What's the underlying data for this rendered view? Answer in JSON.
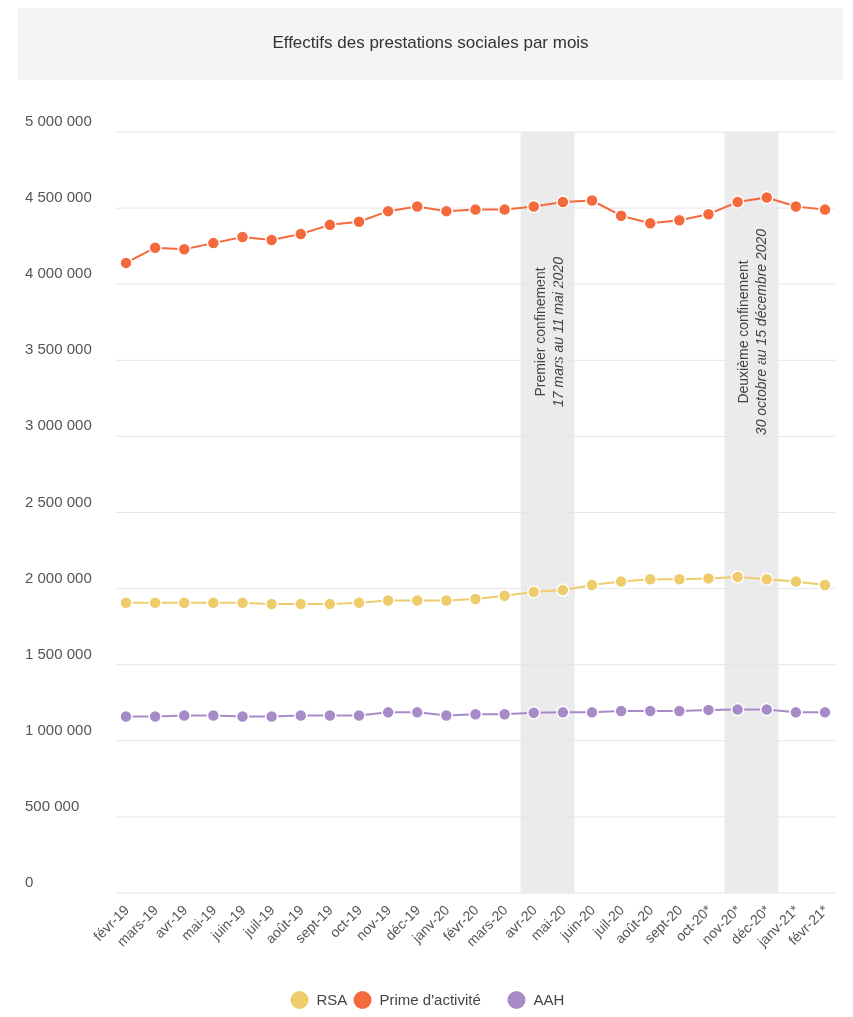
{
  "chart_data": {
    "type": "line",
    "title": "Effectifs des prestations sociales par mois",
    "categories": [
      "févr-19",
      "mars-19",
      "avr-19",
      "mai-19",
      "juin-19",
      "juil-19",
      "août-19",
      "sept-19",
      "oct-19",
      "nov-19",
      "déc-19",
      "janv-20",
      "févr-20",
      "mars-20",
      "avr-20",
      "mai-20",
      "juin-20",
      "juil-20",
      "août-20",
      "sept-20",
      "oct-20*",
      "nov-20*",
      "déc-20*",
      "janv-21*",
      "févr-21*"
    ],
    "series": [
      {
        "name": "RSA",
        "color": "#eecb6b",
        "values": [
          1907000,
          1907000,
          1907000,
          1907000,
          1907000,
          1898000,
          1898000,
          1898000,
          1907000,
          1922000,
          1922000,
          1922000,
          1932000,
          1953000,
          1978000,
          1990000,
          2024000,
          2046000,
          2062000,
          2062000,
          2067000,
          2077000,
          2062000,
          2046000,
          2024000
        ]
      },
      {
        "name": "Prime d'activité",
        "color": "#f46a3c",
        "values": [
          4140000,
          4240000,
          4230000,
          4270000,
          4310000,
          4290000,
          4330000,
          4390000,
          4410000,
          4480000,
          4510000,
          4480000,
          4490000,
          4490000,
          4510000,
          4540000,
          4550000,
          4450000,
          4400000,
          4420000,
          4460000,
          4540000,
          4570000,
          4510000,
          4490000
        ]
      },
      {
        "name": "AAH",
        "color": "#a78bc9",
        "values": [
          1160000,
          1160000,
          1166000,
          1166000,
          1160000,
          1160000,
          1166000,
          1166000,
          1166000,
          1187000,
          1187000,
          1166000,
          1175000,
          1175000,
          1184000,
          1187000,
          1187000,
          1196000,
          1196000,
          1196000,
          1203000,
          1206000,
          1206000,
          1187000,
          1187000
        ]
      }
    ],
    "ylim": [
      0,
      5000000
    ],
    "yticks": [
      {
        "value": 0,
        "label": "0"
      },
      {
        "value": 500000,
        "label": "500 000"
      },
      {
        "value": 1000000,
        "label": "1 000 000"
      },
      {
        "value": 1500000,
        "label": "1 500 000"
      },
      {
        "value": 2000000,
        "label": "2 000 000"
      },
      {
        "value": 2500000,
        "label": "2 500 000"
      },
      {
        "value": 3000000,
        "label": "3 000 000"
      },
      {
        "value": 3500000,
        "label": "3 500 000"
      },
      {
        "value": 4000000,
        "label": "4 000 000"
      },
      {
        "value": 4500000,
        "label": "4 500 000"
      },
      {
        "value": 5000000,
        "label": "5 000 000"
      }
    ],
    "bands": [
      {
        "axis": "x",
        "from": "avr-20",
        "to": "mai-20",
        "label": "Premier confinement\n17 mars au 11 mai 2020",
        "color": "#ebebeb"
      },
      {
        "axis": "x",
        "from": "nov-20*",
        "to": "déc-20*",
        "label": "Deuxième confinement\n30 octobre au 15 décembre 2020",
        "color": "#ebebeb"
      }
    ],
    "grid": "y",
    "legend": "bottom",
    "marker": "circle",
    "line_style": "solid"
  }
}
